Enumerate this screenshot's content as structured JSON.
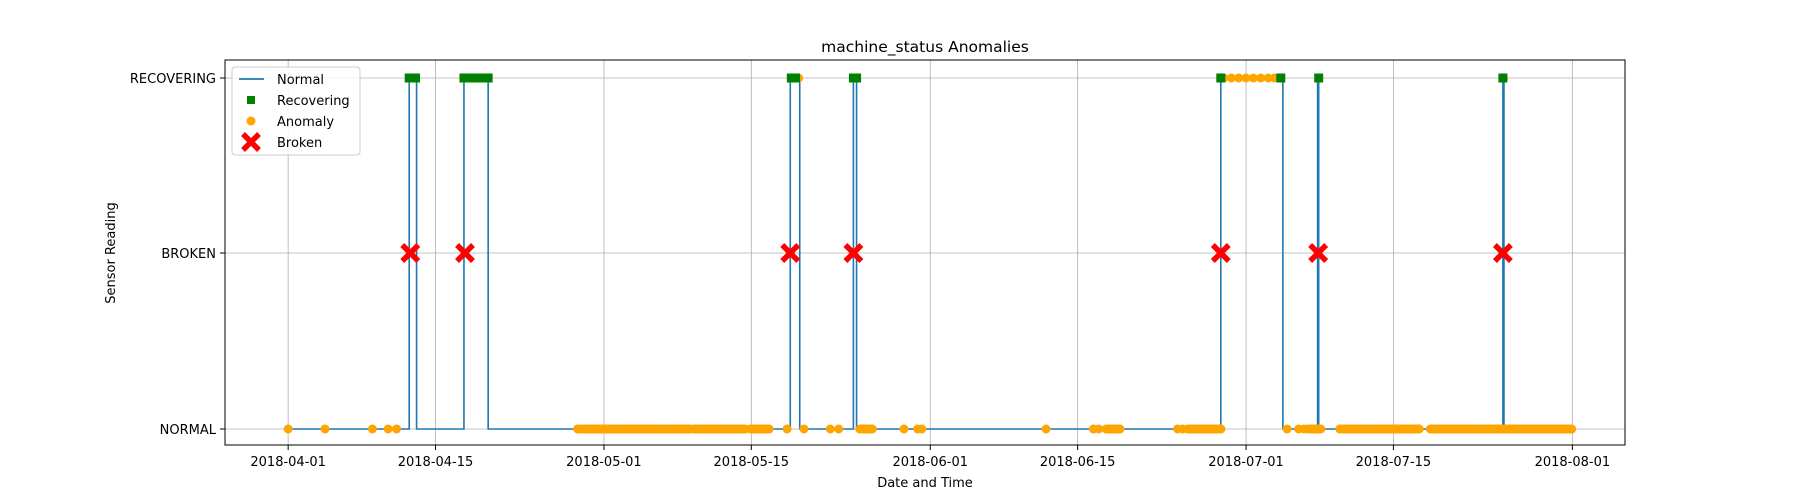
{
  "chart_data": {
    "type": "line",
    "title": "machine_status Anomalies",
    "xlabel": "Date and Time",
    "ylabel": "Sensor Reading",
    "x_type": "date",
    "xlim": [
      "2018-03-26",
      "2018-08-06"
    ],
    "x_ticks": [
      "2018-04-01",
      "2018-04-15",
      "2018-05-01",
      "2018-05-15",
      "2018-06-01",
      "2018-06-15",
      "2018-07-01",
      "2018-07-15",
      "2018-08-01"
    ],
    "y_categories": [
      "NORMAL",
      "BROKEN",
      "RECOVERING"
    ],
    "grid": true,
    "legend_position": "top-left",
    "legend": [
      {
        "label": "Normal",
        "kind": "line",
        "color": "#1f77b4"
      },
      {
        "label": "Recovering",
        "kind": "square",
        "color": "#008000"
      },
      {
        "label": "Anomaly",
        "kind": "circle",
        "color": "#ffa500"
      },
      {
        "label": "Broken",
        "kind": "x",
        "color": "#ff0000"
      }
    ],
    "series": [
      {
        "name": "Normal",
        "color": "#1f77b4",
        "step_segments": [
          [
            "2018-04-01",
            "NORMAL"
          ],
          [
            "2018-04-12.5",
            "NORMAL"
          ],
          [
            "2018-04-12.5",
            "RECOVERING"
          ],
          [
            "2018-04-13.2",
            "RECOVERING"
          ],
          [
            "2018-04-13.2",
            "NORMAL"
          ],
          [
            "2018-04-17.7",
            "NORMAL"
          ],
          [
            "2018-04-17.7",
            "RECOVERING"
          ],
          [
            "2018-04-20",
            "RECOVERING"
          ],
          [
            "2018-04-20",
            "NORMAL"
          ],
          [
            "2018-05-18.7",
            "NORMAL"
          ],
          [
            "2018-05-18.7",
            "RECOVERING"
          ],
          [
            "2018-05-19.6",
            "RECOVERING"
          ],
          [
            "2018-05-19.6",
            "NORMAL"
          ],
          [
            "2018-05-24.7",
            "NORMAL"
          ],
          [
            "2018-05-24.7",
            "RECOVERING"
          ],
          [
            "2018-05-25",
            "RECOVERING"
          ],
          [
            "2018-05-25",
            "NORMAL"
          ],
          [
            "2018-06-28.6",
            "NORMAL"
          ],
          [
            "2018-06-28.6",
            "RECOVERING"
          ],
          [
            "2018-07-04.5",
            "RECOVERING"
          ],
          [
            "2018-07-04.5",
            "NORMAL"
          ],
          [
            "2018-07-07.8",
            "NORMAL"
          ],
          [
            "2018-07-07.8",
            "RECOVERING"
          ],
          [
            "2018-07-07.9",
            "RECOVERING"
          ],
          [
            "2018-07-07.9",
            "NORMAL"
          ],
          [
            "2018-07-25.4",
            "NORMAL"
          ],
          [
            "2018-07-25.4",
            "RECOVERING"
          ],
          [
            "2018-07-25.5",
            "RECOVERING"
          ],
          [
            "2018-07-25.5",
            "NORMAL"
          ],
          [
            "2018-08-01",
            "NORMAL"
          ]
        ]
      },
      {
        "name": "Recovering",
        "color": "#008000",
        "y": "RECOVERING",
        "x": [
          "2018-04-12.5",
          "2018-04-12.8",
          "2018-04-13.1",
          "2018-04-17.7",
          "2018-04-18.2",
          "2018-04-18.7",
          "2018-04-19.2",
          "2018-04-19.7",
          "2018-04-20",
          "2018-05-18.8",
          "2018-05-19.2",
          "2018-05-24.7",
          "2018-05-25",
          "2018-06-28.6",
          "2018-07-04.3",
          "2018-07-07.9",
          "2018-07-25.4"
        ]
      },
      {
        "name": "Anomaly",
        "color": "#ffa500",
        "points": [
          [
            "2018-04-01",
            "NORMAL"
          ],
          [
            "2018-04-04.5",
            "NORMAL"
          ],
          [
            "2018-04-09",
            "NORMAL"
          ],
          [
            "2018-04-10.5",
            "NORMAL"
          ],
          [
            "2018-04-11.3",
            "NORMAL"
          ],
          [
            "2018-05-18.4",
            "NORMAL"
          ],
          [
            "2018-05-20",
            "NORMAL"
          ],
          [
            "2018-05-22.5",
            "NORMAL"
          ],
          [
            "2018-05-23.3",
            "NORMAL"
          ],
          [
            "2018-05-29.5",
            "NORMAL"
          ],
          [
            "2018-05-30.8",
            "NORMAL"
          ],
          [
            "2018-05-31.2",
            "NORMAL"
          ],
          [
            "2018-06-12",
            "NORMAL"
          ],
          [
            "2018-06-16.5",
            "NORMAL"
          ],
          [
            "2018-06-17",
            "NORMAL"
          ],
          [
            "2018-06-24.5",
            "NORMAL"
          ],
          [
            "2018-06-25",
            "NORMAL"
          ],
          [
            "2018-07-04.9",
            "NORMAL"
          ],
          [
            "2018-07-06",
            "NORMAL"
          ],
          [
            "2018-07-06.5",
            "NORMAL"
          ],
          [
            "2018-05-19.5",
            "RECOVERING"
          ],
          [
            "2018-06-28.9",
            "RECOVERING"
          ],
          [
            "2018-06-29.6",
            "RECOVERING"
          ],
          [
            "2018-06-30.3",
            "RECOVERING"
          ],
          [
            "2018-07-01",
            "RECOVERING"
          ],
          [
            "2018-07-01.7",
            "RECOVERING"
          ],
          [
            "2018-07-02.4",
            "RECOVERING"
          ],
          [
            "2018-07-03.1",
            "RECOVERING"
          ],
          [
            "2018-07-03.7",
            "RECOVERING"
          ],
          [
            "2018-07-25.45",
            "RECOVERING"
          ]
        ],
        "dense_ranges": [
          [
            "2018-04-28.5",
            "2018-05-09.2",
            "NORMAL"
          ],
          [
            "2018-05-09.5",
            "2018-05-14.5",
            "NORMAL"
          ],
          [
            "2018-05-14.9",
            "2018-05-16.7",
            "NORMAL"
          ],
          [
            "2018-05-25.3",
            "2018-05-26.6",
            "NORMAL"
          ],
          [
            "2018-06-17.7",
            "2018-06-19.1",
            "NORMAL"
          ],
          [
            "2018-06-25.5",
            "2018-06-28.7",
            "NORMAL"
          ],
          [
            "2018-07-06.9",
            "2018-07-08.1",
            "NORMAL"
          ],
          [
            "2018-07-09.9",
            "2018-07-17.5",
            "NORMAL"
          ],
          [
            "2018-07-18.5",
            "2018-08-01",
            "NORMAL"
          ]
        ]
      },
      {
        "name": "Broken",
        "color": "#ff0000",
        "y": "BROKEN",
        "x": [
          "2018-04-12.6",
          "2018-04-17.8",
          "2018-05-18.7",
          "2018-05-24.7",
          "2018-06-28.6",
          "2018-07-07.85",
          "2018-07-25.4"
        ]
      }
    ]
  }
}
